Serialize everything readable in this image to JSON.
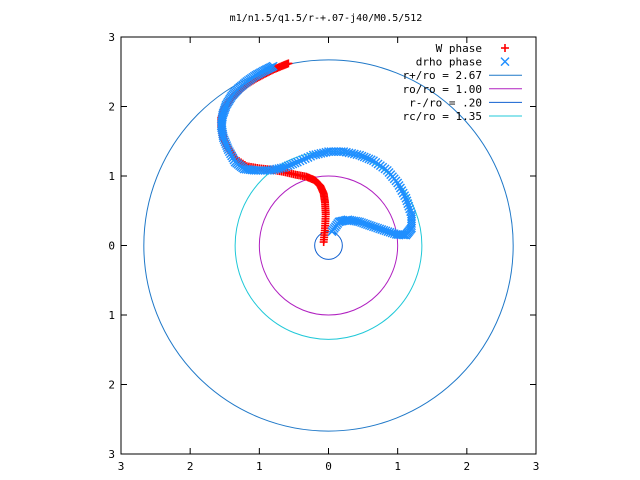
{
  "chart_data": {
    "type": "scatter",
    "title": "m1/n1.5/q1.5/r-+.07-j40/M0.5/512",
    "xlabel": "",
    "ylabel": "",
    "xlim": [
      -3,
      3
    ],
    "ylim": [
      -3,
      3
    ],
    "x_tick_labels": [
      "3",
      "2",
      "1",
      "0",
      "1",
      "2",
      "3"
    ],
    "x_tick_values": [
      -3,
      -2,
      -1,
      0,
      1,
      2,
      3
    ],
    "y_tick_labels": [
      "3",
      "2",
      "1",
      "0",
      "1",
      "2",
      "3"
    ],
    "y_tick_values": [
      3,
      2,
      1,
      0,
      -1,
      -2,
      -3
    ],
    "grid": false,
    "legend_position": "top-right",
    "series": [
      {
        "name": "W phase",
        "kind": "points",
        "marker": "+",
        "color": "#ff0000",
        "x": [
          -0.07,
          -0.05,
          -0.04,
          -0.05,
          -0.07,
          -0.12,
          -0.2,
          -0.32,
          -0.48,
          -0.65,
          -0.82,
          -1.0,
          -1.18,
          -1.35,
          -1.45,
          -1.52,
          -1.55,
          -1.55,
          -1.5,
          -1.42,
          -1.3,
          -1.18,
          -1.05,
          -0.92,
          -0.8,
          -0.68,
          -0.58
        ],
        "y": [
          0.05,
          0.25,
          0.45,
          0.62,
          0.75,
          0.86,
          0.94,
          0.99,
          1.02,
          1.06,
          1.09,
          1.11,
          1.14,
          1.25,
          1.4,
          1.55,
          1.7,
          1.84,
          1.98,
          2.1,
          2.22,
          2.32,
          2.4,
          2.47,
          2.53,
          2.58,
          2.62
        ]
      },
      {
        "name": "drho phase",
        "kind": "points",
        "marker": "x",
        "color": "#1f8fff",
        "x": [
          0.05,
          0.15,
          0.28,
          0.45,
          0.62,
          0.8,
          0.98,
          1.12,
          1.2,
          1.2,
          1.12,
          1.0,
          0.85,
          0.65,
          0.45,
          0.22,
          0.0,
          -0.22,
          -0.45,
          -0.65,
          -0.85,
          -1.05,
          -1.22,
          -1.35,
          -1.45,
          -1.52,
          -1.55,
          -1.53,
          -1.48,
          -1.4,
          -1.3,
          -1.18,
          -1.05,
          -0.92,
          -0.8
        ],
        "y": [
          0.2,
          0.34,
          0.37,
          0.34,
          0.28,
          0.22,
          0.16,
          0.15,
          0.25,
          0.45,
          0.68,
          0.9,
          1.08,
          1.22,
          1.3,
          1.35,
          1.35,
          1.3,
          1.2,
          1.12,
          1.08,
          1.08,
          1.1,
          1.2,
          1.38,
          1.55,
          1.72,
          1.88,
          2.02,
          2.15,
          2.26,
          2.36,
          2.45,
          2.52,
          2.58
        ]
      },
      {
        "name": "r+/ro = 2.67",
        "kind": "circle",
        "radius": 2.67,
        "color": "#1f78c8"
      },
      {
        "name": "ro/ro = 1.00",
        "kind": "circle",
        "radius": 1.0,
        "color": "#b020c0"
      },
      {
        "name": "r-/ro = .20",
        "kind": "circle",
        "radius": 0.2,
        "color": "#1060d0"
      },
      {
        "name": "rc/ro = 1.35",
        "kind": "circle",
        "radius": 1.35,
        "color": "#20c8d8"
      }
    ]
  }
}
